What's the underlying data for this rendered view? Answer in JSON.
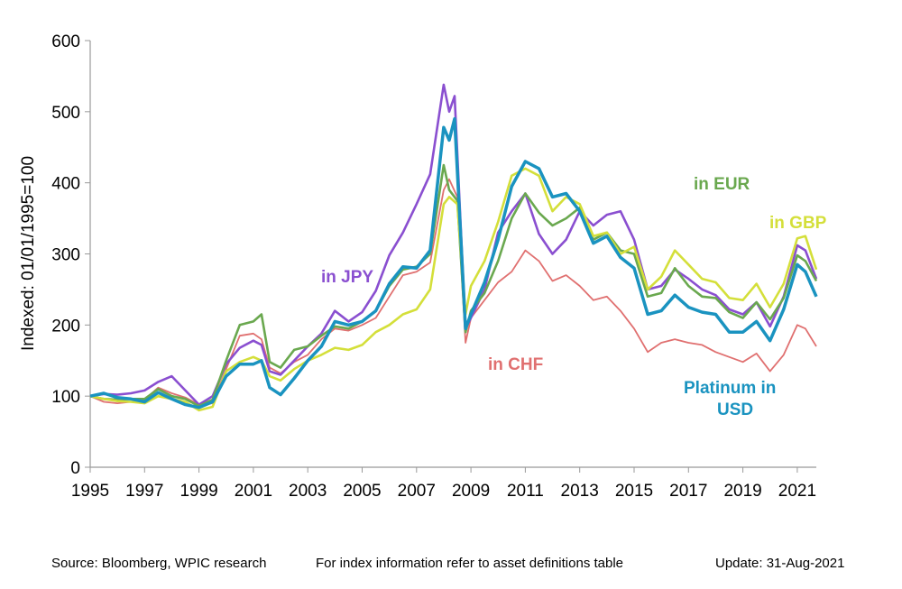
{
  "chart_data": {
    "type": "line",
    "ylabel": "Indexed: 01/01/1995=100",
    "ylim": [
      0,
      600
    ],
    "yticks": [
      0,
      100,
      200,
      300,
      400,
      500,
      600
    ],
    "xlim": [
      1995,
      2021.7
    ],
    "xticks": [
      "1995",
      "1997",
      "1999",
      "2001",
      "2003",
      "2005",
      "2007",
      "2009",
      "2011",
      "2013",
      "2015",
      "2017",
      "2019",
      "2021"
    ],
    "grid": false,
    "series": [
      {
        "name": "in CHF",
        "color": "#E07070",
        "points": [
          [
            1995,
            100
          ],
          [
            1995.5,
            92
          ],
          [
            1996,
            90
          ],
          [
            1996.5,
            92
          ],
          [
            1997,
            95
          ],
          [
            1997.5,
            112
          ],
          [
            1998,
            104
          ],
          [
            1998.5,
            98
          ],
          [
            1999,
            88
          ],
          [
            1999.5,
            90
          ],
          [
            2000,
            138
          ],
          [
            2000.5,
            185
          ],
          [
            2001,
            188
          ],
          [
            2001.3,
            180
          ],
          [
            2001.6,
            140
          ],
          [
            2002,
            132
          ],
          [
            2002.5,
            148
          ],
          [
            2003,
            158
          ],
          [
            2003.5,
            180
          ],
          [
            2004,
            195
          ],
          [
            2004.5,
            192
          ],
          [
            2005,
            200
          ],
          [
            2005.5,
            210
          ],
          [
            2006,
            240
          ],
          [
            2006.5,
            270
          ],
          [
            2007,
            275
          ],
          [
            2007.5,
            288
          ],
          [
            2008,
            390
          ],
          [
            2008.2,
            405
          ],
          [
            2008.5,
            380
          ],
          [
            2008.8,
            175
          ],
          [
            2009,
            210
          ],
          [
            2009.5,
            235
          ],
          [
            2010,
            260
          ],
          [
            2010.5,
            275
          ],
          [
            2011,
            305
          ],
          [
            2011.5,
            290
          ],
          [
            2012,
            262
          ],
          [
            2012.5,
            270
          ],
          [
            2013,
            255
          ],
          [
            2013.5,
            235
          ],
          [
            2014,
            240
          ],
          [
            2014.5,
            220
          ],
          [
            2015,
            195
          ],
          [
            2015.5,
            162
          ],
          [
            2016,
            175
          ],
          [
            2016.5,
            180
          ],
          [
            2017,
            175
          ],
          [
            2017.5,
            172
          ],
          [
            2018,
            162
          ],
          [
            2018.5,
            155
          ],
          [
            2019,
            148
          ],
          [
            2019.5,
            160
          ],
          [
            2020,
            135
          ],
          [
            2020.5,
            158
          ],
          [
            2021,
            200
          ],
          [
            2021.3,
            195
          ],
          [
            2021.7,
            170
          ]
        ]
      },
      {
        "name": "in JPY",
        "color": "#8A4FD0",
        "points": [
          [
            1995,
            100
          ],
          [
            1995.5,
            103
          ],
          [
            1996,
            102
          ],
          [
            1996.5,
            104
          ],
          [
            1997,
            108
          ],
          [
            1997.5,
            120
          ],
          [
            1998,
            128
          ],
          [
            1998.5,
            108
          ],
          [
            1999,
            88
          ],
          [
            1999.5,
            100
          ],
          [
            2000,
            145
          ],
          [
            2000.5,
            168
          ],
          [
            2001,
            178
          ],
          [
            2001.3,
            172
          ],
          [
            2001.6,
            135
          ],
          [
            2002,
            130
          ],
          [
            2002.5,
            150
          ],
          [
            2003,
            170
          ],
          [
            2003.5,
            188
          ],
          [
            2004,
            220
          ],
          [
            2004.5,
            205
          ],
          [
            2005,
            218
          ],
          [
            2005.5,
            248
          ],
          [
            2006,
            298
          ],
          [
            2006.5,
            330
          ],
          [
            2007,
            370
          ],
          [
            2007.5,
            412
          ],
          [
            2008,
            538
          ],
          [
            2008.2,
            500
          ],
          [
            2008.4,
            522
          ],
          [
            2008.8,
            195
          ],
          [
            2009,
            210
          ],
          [
            2009.5,
            250
          ],
          [
            2010,
            330
          ],
          [
            2010.5,
            360
          ],
          [
            2011,
            385
          ],
          [
            2011.5,
            328
          ],
          [
            2012,
            300
          ],
          [
            2012.5,
            320
          ],
          [
            2013,
            360
          ],
          [
            2013.5,
            340
          ],
          [
            2014,
            355
          ],
          [
            2014.5,
            360
          ],
          [
            2015,
            320
          ],
          [
            2015.5,
            250
          ],
          [
            2016,
            255
          ],
          [
            2016.5,
            278
          ],
          [
            2017,
            265
          ],
          [
            2017.5,
            250
          ],
          [
            2018,
            242
          ],
          [
            2018.5,
            222
          ],
          [
            2019,
            215
          ],
          [
            2019.5,
            232
          ],
          [
            2020,
            198
          ],
          [
            2020.5,
            240
          ],
          [
            2021,
            312
          ],
          [
            2021.3,
            305
          ],
          [
            2021.7,
            265
          ]
        ]
      },
      {
        "name": "in EUR",
        "color": "#6AA84F",
        "points": [
          [
            1995,
            100
          ],
          [
            1995.5,
            96
          ],
          [
            1996,
            95
          ],
          [
            1996.5,
            96
          ],
          [
            1997,
            96
          ],
          [
            1997.5,
            110
          ],
          [
            1998,
            100
          ],
          [
            1998.5,
            96
          ],
          [
            1999,
            86
          ],
          [
            1999.5,
            95
          ],
          [
            2000,
            150
          ],
          [
            2000.5,
            200
          ],
          [
            2001,
            205
          ],
          [
            2001.3,
            215
          ],
          [
            2001.6,
            148
          ],
          [
            2002,
            140
          ],
          [
            2002.5,
            165
          ],
          [
            2003,
            170
          ],
          [
            2003.5,
            185
          ],
          [
            2004,
            198
          ],
          [
            2004.5,
            195
          ],
          [
            2005,
            205
          ],
          [
            2005.5,
            220
          ],
          [
            2006,
            255
          ],
          [
            2006.5,
            278
          ],
          [
            2007,
            282
          ],
          [
            2007.5,
            300
          ],
          [
            2008,
            425
          ],
          [
            2008.2,
            390
          ],
          [
            2008.5,
            375
          ],
          [
            2008.8,
            190
          ],
          [
            2009,
            220
          ],
          [
            2009.5,
            245
          ],
          [
            2010,
            290
          ],
          [
            2010.5,
            350
          ],
          [
            2011,
            385
          ],
          [
            2011.5,
            358
          ],
          [
            2012,
            340
          ],
          [
            2012.5,
            350
          ],
          [
            2013,
            365
          ],
          [
            2013.5,
            320
          ],
          [
            2014,
            330
          ],
          [
            2014.5,
            305
          ],
          [
            2015,
            300
          ],
          [
            2015.5,
            240
          ],
          [
            2016,
            245
          ],
          [
            2016.5,
            280
          ],
          [
            2017,
            255
          ],
          [
            2017.5,
            240
          ],
          [
            2018,
            238
          ],
          [
            2018.5,
            218
          ],
          [
            2019,
            210
          ],
          [
            2019.5,
            232
          ],
          [
            2020,
            208
          ],
          [
            2020.5,
            238
          ],
          [
            2021,
            298
          ],
          [
            2021.3,
            290
          ],
          [
            2021.7,
            262
          ]
        ]
      },
      {
        "name": "in GBP",
        "color": "#D4DF3A",
        "points": [
          [
            1995,
            100
          ],
          [
            1995.5,
            96
          ],
          [
            1996,
            93
          ],
          [
            1996.5,
            92
          ],
          [
            1997,
            90
          ],
          [
            1997.5,
            100
          ],
          [
            1998,
            96
          ],
          [
            1998.5,
            92
          ],
          [
            1999,
            80
          ],
          [
            1999.5,
            85
          ],
          [
            2000,
            135
          ],
          [
            2000.5,
            148
          ],
          [
            2001,
            155
          ],
          [
            2001.3,
            150
          ],
          [
            2001.6,
            128
          ],
          [
            2002,
            122
          ],
          [
            2002.5,
            138
          ],
          [
            2003,
            150
          ],
          [
            2003.5,
            158
          ],
          [
            2004,
            168
          ],
          [
            2004.5,
            165
          ],
          [
            2005,
            172
          ],
          [
            2005.5,
            190
          ],
          [
            2006,
            200
          ],
          [
            2006.5,
            215
          ],
          [
            2007,
            222
          ],
          [
            2007.5,
            250
          ],
          [
            2008,
            370
          ],
          [
            2008.2,
            380
          ],
          [
            2008.5,
            370
          ],
          [
            2008.8,
            215
          ],
          [
            2009,
            255
          ],
          [
            2009.5,
            290
          ],
          [
            2010,
            345
          ],
          [
            2010.5,
            410
          ],
          [
            2011,
            420
          ],
          [
            2011.5,
            410
          ],
          [
            2012,
            360
          ],
          [
            2012.5,
            380
          ],
          [
            2013,
            370
          ],
          [
            2013.5,
            325
          ],
          [
            2014,
            330
          ],
          [
            2014.5,
            300
          ],
          [
            2015,
            310
          ],
          [
            2015.5,
            250
          ],
          [
            2016,
            268
          ],
          [
            2016.5,
            305
          ],
          [
            2017,
            285
          ],
          [
            2017.5,
            265
          ],
          [
            2018,
            260
          ],
          [
            2018.5,
            238
          ],
          [
            2019,
            235
          ],
          [
            2019.5,
            258
          ],
          [
            2020,
            225
          ],
          [
            2020.5,
            258
          ],
          [
            2021,
            322
          ],
          [
            2021.3,
            325
          ],
          [
            2021.7,
            278
          ]
        ]
      },
      {
        "name": "Platinum in USD",
        "color": "#1A93C0",
        "points": [
          [
            1995,
            100
          ],
          [
            1995.5,
            104
          ],
          [
            1996,
            98
          ],
          [
            1996.5,
            96
          ],
          [
            1997,
            92
          ],
          [
            1997.5,
            105
          ],
          [
            1998,
            96
          ],
          [
            1998.5,
            88
          ],
          [
            1999,
            84
          ],
          [
            1999.5,
            92
          ],
          [
            2000,
            128
          ],
          [
            2000.5,
            145
          ],
          [
            2001,
            145
          ],
          [
            2001.3,
            150
          ],
          [
            2001.6,
            112
          ],
          [
            2002,
            102
          ],
          [
            2002.5,
            125
          ],
          [
            2003,
            150
          ],
          [
            2003.5,
            170
          ],
          [
            2004,
            205
          ],
          [
            2004.5,
            200
          ],
          [
            2005,
            205
          ],
          [
            2005.5,
            220
          ],
          [
            2006,
            258
          ],
          [
            2006.5,
            282
          ],
          [
            2007,
            280
          ],
          [
            2007.5,
            305
          ],
          [
            2008,
            478
          ],
          [
            2008.2,
            460
          ],
          [
            2008.4,
            490
          ],
          [
            2008.8,
            195
          ],
          [
            2009,
            215
          ],
          [
            2009.5,
            260
          ],
          [
            2010,
            320
          ],
          [
            2010.5,
            395
          ],
          [
            2011,
            430
          ],
          [
            2011.5,
            420
          ],
          [
            2012,
            380
          ],
          [
            2012.5,
            385
          ],
          [
            2013,
            360
          ],
          [
            2013.5,
            315
          ],
          [
            2014,
            325
          ],
          [
            2014.5,
            295
          ],
          [
            2015,
            280
          ],
          [
            2015.5,
            215
          ],
          [
            2016,
            220
          ],
          [
            2016.5,
            242
          ],
          [
            2017,
            225
          ],
          [
            2017.5,
            218
          ],
          [
            2018,
            215
          ],
          [
            2018.5,
            190
          ],
          [
            2019,
            190
          ],
          [
            2019.5,
            205
          ],
          [
            2020,
            178
          ],
          [
            2020.5,
            222
          ],
          [
            2021,
            285
          ],
          [
            2021.3,
            275
          ],
          [
            2021.7,
            240
          ]
        ]
      }
    ]
  },
  "series_labels": {
    "jpy": "in JPY",
    "chf": "in CHF",
    "eur": "in EUR",
    "gbp": "in GBP",
    "usd_line1": "Platinum in",
    "usd_line2": "USD"
  },
  "footer": {
    "source": "Source: Bloomberg, WPIC research",
    "index_note": "For index information refer to asset definitions table",
    "update": "Update: 31-Aug-2021"
  }
}
